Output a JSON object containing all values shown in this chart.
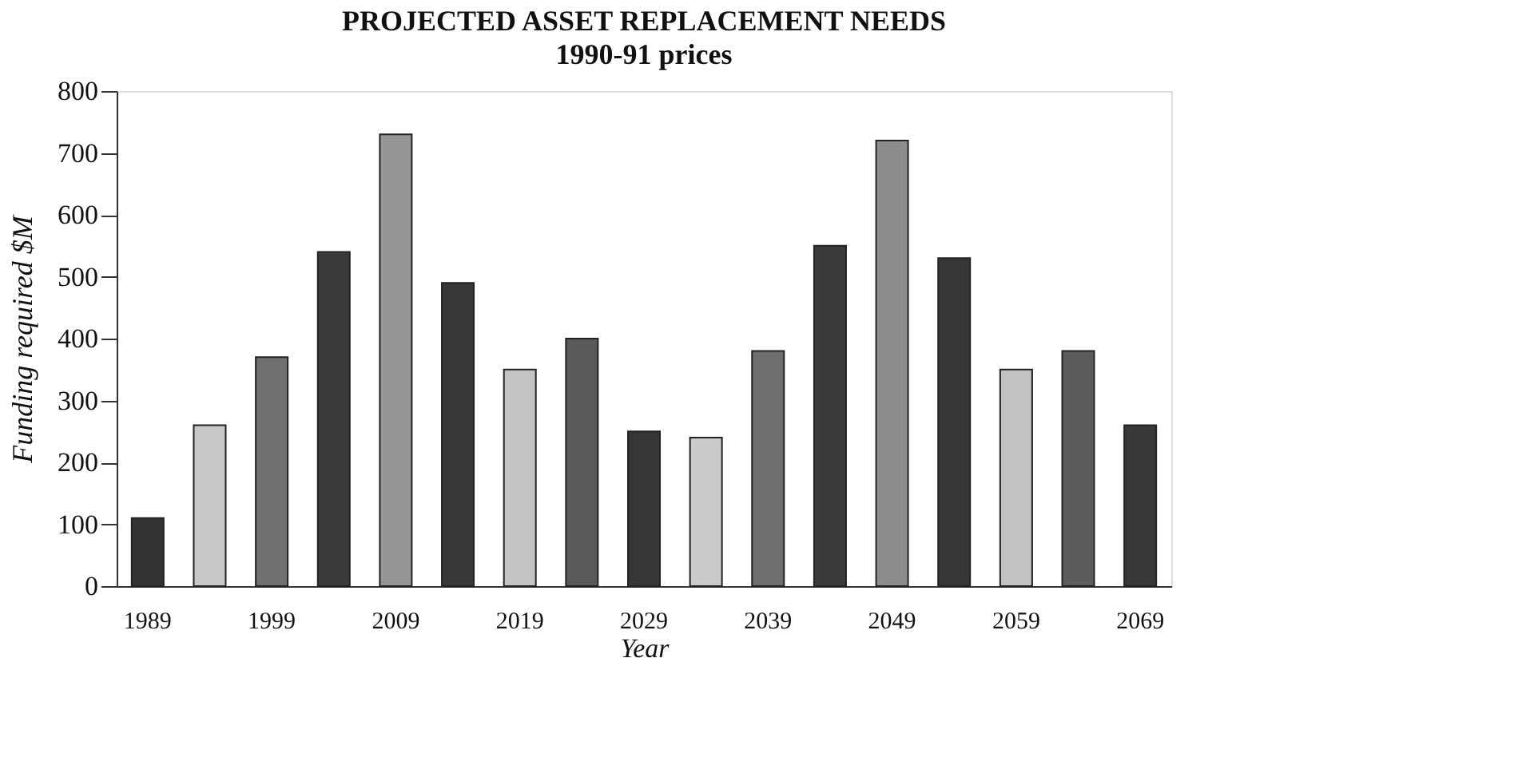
{
  "chart_data": {
    "type": "bar",
    "title": "PROJECTED ASSET REPLACEMENT NEEDS",
    "subtitle": "1990-91 prices",
    "xlabel": "Year",
    "ylabel": "Funding required $M",
    "categories": [
      "1989",
      null,
      "1999",
      null,
      "2009",
      null,
      "2019",
      null,
      "2029",
      null,
      "2039",
      null,
      "2049",
      null,
      "2059",
      null,
      "2069"
    ],
    "values": [
      110,
      260,
      370,
      540,
      730,
      490,
      350,
      400,
      250,
      240,
      380,
      550,
      720,
      530,
      350,
      380,
      260
    ],
    "colors": [
      "#333333",
      "#c8c8c8",
      "#707070",
      "#3a3a3a",
      "#959595",
      "#383838",
      "#c4c4c4",
      "#5a5a5a",
      "#363636",
      "#cacaca",
      "#6e6e6e",
      "#3a3a3a",
      "#8c8c8c",
      "#363636",
      "#c2c2c2",
      "#5c5c5c",
      "#383838"
    ],
    "ylim": [
      0,
      800
    ],
    "yticks": [
      0,
      100,
      200,
      300,
      400,
      500,
      600,
      700,
      800
    ],
    "grid": false,
    "legend": false
  }
}
